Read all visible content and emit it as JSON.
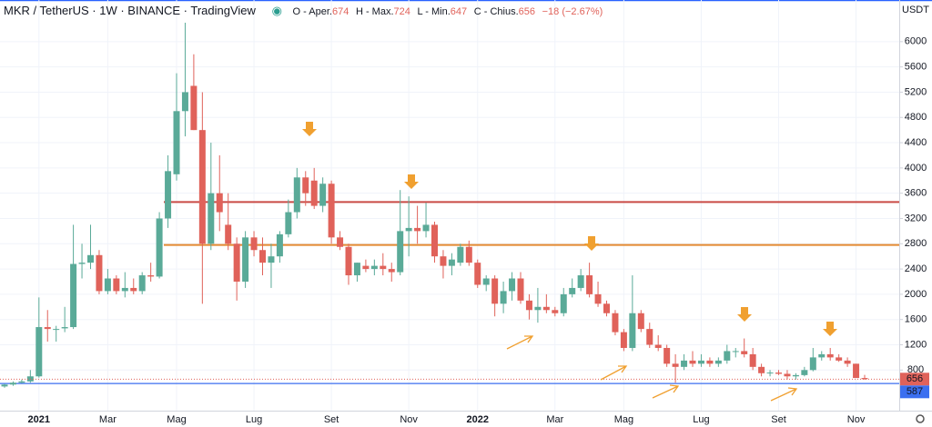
{
  "chart_data": {
    "type": "candlestick",
    "title": "MKR / TetherUS · 1W · BINANCE · TradingView",
    "ohlc_labels": [
      "O - Aper.",
      "H - Max.",
      "L - Min.",
      "C - Chius."
    ],
    "change": "−18 (−2.67%)",
    "currency": "USDT",
    "categories": [
      null,
      null,
      null,
      null,
      "2021",
      null,
      null,
      null,
      null,
      null,
      null,
      null,
      "Mar",
      null,
      null,
      null,
      null,
      null,
      null,
      null,
      "Mag",
      null,
      null,
      null,
      null,
      null,
      null,
      null,
      null,
      "Lug",
      null,
      null,
      null,
      null,
      null,
      null,
      null,
      null,
      "Set",
      null,
      null,
      null,
      null,
      null,
      null,
      null,
      null,
      "Nov",
      null,
      null,
      null,
      null,
      null,
      null,
      null,
      "2022",
      null,
      null,
      null,
      null,
      null,
      null,
      null,
      null,
      "Mar",
      null,
      null,
      null,
      null,
      null,
      null,
      null,
      "Mag",
      null,
      null,
      null,
      null,
      null,
      null,
      null,
      null,
      "Lug",
      null,
      null,
      null,
      null,
      null,
      null,
      null,
      null,
      "Set",
      null,
      null,
      null,
      null,
      null,
      null,
      null,
      null,
      "Nov",
      null
    ],
    "open": [
      540,
      570,
      600,
      620,
      700,
      1480,
      1450,
      1460,
      1480,
      2480,
      2500,
      2620,
      2050,
      2250,
      2050,
      2100,
      2050,
      2300,
      2280,
      3200,
      3900,
      4900,
      5300,
      4600,
      2800,
      3600,
      3100,
      2800,
      2200,
      2900,
      2700,
      2500,
      2600,
      2950,
      3300,
      3850,
      3800,
      3400,
      3750,
      2900,
      2750,
      2300,
      2450,
      2400,
      2450,
      2400,
      2350,
      3000,
      3050,
      3000,
      3100,
      2600,
      2450,
      2500,
      2750,
      2500,
      2150,
      2250,
      1850,
      2050,
      2250,
      1900,
      1750,
      1800,
      1750,
      1700,
      2000,
      2100,
      2300,
      2000,
      1850,
      1700,
      1400,
      1150,
      1700,
      1450,
      1200,
      1150,
      900,
      850,
      950,
      900,
      950,
      900,
      950,
      1100,
      1100,
      1050,
      850,
      750,
      760,
      740,
      700,
      720,
      800,
      1000,
      1050,
      1000,
      950,
      900,
      674
    ],
    "high": [
      580,
      620,
      650,
      800,
      1950,
      1750,
      1500,
      1800,
      3100,
      2800,
      3100,
      2700,
      2400,
      2300,
      2350,
      2250,
      2350,
      2500,
      3300,
      4200,
      5500,
      6300,
      5800,
      5200,
      4400,
      4200,
      3600,
      2900,
      3000,
      3000,
      2900,
      2800,
      3000,
      3500,
      4000,
      3950,
      4000,
      3850,
      3800,
      3000,
      2800,
      2500,
      2550,
      2550,
      2650,
      2500,
      3650,
      3550,
      3400,
      3450,
      3150,
      2700,
      2650,
      2800,
      2850,
      2550,
      2300,
      2300,
      2200,
      2350,
      2350,
      2000,
      2100,
      2000,
      1800,
      2100,
      2250,
      2400,
      2500,
      2200,
      1900,
      1750,
      1450,
      2300,
      1750,
      1550,
      1350,
      1200,
      1050,
      1050,
      1100,
      1050,
      1000,
      1000,
      1200,
      1150,
      1300,
      1150,
      900,
      800,
      800,
      800,
      750,
      850,
      1150,
      1100,
      1150,
      1050,
      1000,
      900,
      724
    ],
    "low": [
      520,
      550,
      590,
      600,
      680,
      1250,
      1250,
      1400,
      1450,
      2250,
      2400,
      2000,
      2000,
      2000,
      1950,
      2000,
      2000,
      2200,
      2250,
      3050,
      3800,
      4500,
      4600,
      1850,
      2700,
      3000,
      2700,
      1900,
      2100,
      2600,
      2300,
      2100,
      2500,
      2900,
      3200,
      3400,
      3350,
      3300,
      2800,
      2700,
      2150,
      2200,
      2350,
      2300,
      2300,
      2200,
      2300,
      2600,
      2800,
      2900,
      2500,
      2250,
      2300,
      2450,
      2450,
      2100,
      2050,
      1650,
      1700,
      1900,
      1850,
      1600,
      1550,
      1700,
      1650,
      1650,
      1950,
      2050,
      1950,
      1800,
      1650,
      1350,
      1100,
      1100,
      1400,
      1150,
      1100,
      850,
      600,
      800,
      850,
      850,
      850,
      850,
      900,
      1000,
      1000,
      800,
      700,
      700,
      720,
      650,
      650,
      700,
      780,
      950,
      950,
      930,
      850,
      700,
      647
    ],
    "close": [
      570,
      600,
      620,
      700,
      1480,
      1450,
      1450,
      1480,
      2480,
      2500,
      2620,
      2050,
      2250,
      2050,
      2100,
      2050,
      2300,
      2280,
      3200,
      3950,
      4900,
      5200,
      4600,
      2800,
      3600,
      3300,
      2800,
      2200,
      2900,
      2700,
      2500,
      2600,
      2950,
      3300,
      3850,
      3600,
      3400,
      3750,
      2900,
      2750,
      2300,
      2500,
      2400,
      2450,
      2400,
      2350,
      3000,
      3050,
      3000,
      3100,
      2600,
      2450,
      2550,
      2750,
      2500,
      2150,
      2250,
      1850,
      2050,
      2250,
      1900,
      1750,
      1800,
      1750,
      1700,
      2000,
      2100,
      2300,
      2000,
      1850,
      1700,
      1400,
      1150,
      1700,
      1450,
      1200,
      1150,
      900,
      850,
      950,
      900,
      950,
      900,
      950,
      1100,
      1100,
      1050,
      850,
      750,
      760,
      740,
      700,
      720,
      800,
      1000,
      1050,
      1000,
      950,
      900,
      674,
      656
    ],
    "up_color": "#5aaa98",
    "down_color": "#e0625a",
    "levels": [
      {
        "value": 3460,
        "color": "#c94a45"
      },
      {
        "value": 2780,
        "color": "#e38a32"
      }
    ],
    "price_line": {
      "value": 587,
      "color": "#3b6ff0"
    },
    "ylim": [
      157,
      6343
    ],
    "yticks": [
      800,
      1200,
      1600,
      2000,
      2400,
      2800,
      3200,
      3600,
      4000,
      4400,
      4800,
      5200,
      5600,
      6000
    ],
    "grid": true
  }
}
